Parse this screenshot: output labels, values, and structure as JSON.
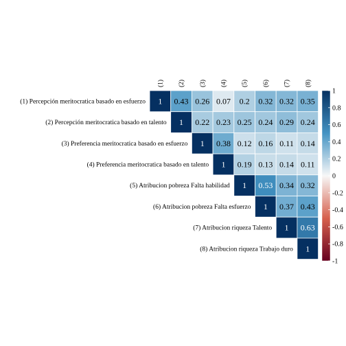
{
  "chart_data": {
    "type": "heatmap",
    "variables": [
      "(1) Percepción meritocratica basado en esfuerzo",
      "(2) Percepción meritocratica basado en talento",
      "(3) Preferencia meritocratica basado en esfuerzo",
      "(4) Preferencia meritocratica basado en talento",
      "(5) Atribucion pobreza Falta habilidad",
      "(6) Atribucion pobreza Falta esfuerzo",
      "(7) Atribucion riqueza Talento",
      "(8) Atribucion riqueza Trabajo duro"
    ],
    "column_labels": [
      "(1)",
      "(2)",
      "(3)",
      "(4)",
      "(5)",
      "(6)",
      "(7)",
      "(8)"
    ],
    "layout": "upper-triangle",
    "matrix": [
      [
        1,
        0.43,
        0.26,
        0.07,
        0.2,
        0.32,
        0.32,
        0.35
      ],
      [
        null,
        1,
        0.22,
        0.23,
        0.25,
        0.24,
        0.29,
        0.24
      ],
      [
        null,
        null,
        1,
        0.38,
        0.12,
        0.16,
        0.11,
        0.14
      ],
      [
        null,
        null,
        null,
        1,
        0.19,
        0.13,
        0.14,
        0.11
      ],
      [
        null,
        null,
        null,
        null,
        1,
        0.53,
        0.34,
        0.32
      ],
      [
        null,
        null,
        null,
        null,
        null,
        1,
        0.37,
        0.43
      ],
      [
        null,
        null,
        null,
        null,
        null,
        null,
        1,
        0.63
      ],
      [
        null,
        null,
        null,
        null,
        null,
        null,
        null,
        1
      ]
    ],
    "value_range": [
      -1,
      1
    ],
    "colorbar": {
      "ticks": [
        "1",
        "0.8",
        "0.6",
        "0.4",
        "0.2",
        "0",
        "-0.2",
        "-0.4",
        "-0.6",
        "-0.8",
        "-1"
      ],
      "colors": {
        "negative_end": "#67001f",
        "negative_mid": "#d6604d",
        "zero": "#f7f7f7",
        "positive_mid": "#4393c3",
        "positive_end": "#053061"
      }
    },
    "title": "",
    "xlabel": "",
    "ylabel": ""
  }
}
